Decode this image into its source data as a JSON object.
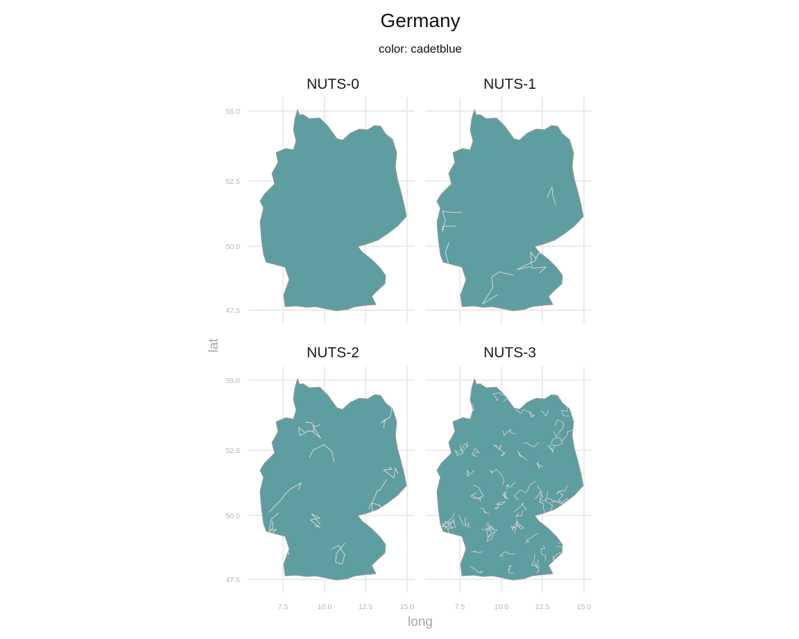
{
  "title": "Germany",
  "subtitle": "color: cadetblue",
  "fill_color": "#5f9ea0",
  "x_axis_title": "long",
  "y_axis_title": "lat",
  "x_ticks": [
    "7.5",
    "10.0",
    "12.5",
    "15.0"
  ],
  "y_ticks": [
    "55.0",
    "52.5",
    "50.0",
    "47.5"
  ],
  "panels": [
    {
      "label": "NUTS-0",
      "level": 0
    },
    {
      "label": "NUTS-1",
      "level": 1
    },
    {
      "label": "NUTS-2",
      "level": 2
    },
    {
      "label": "NUTS-3",
      "level": 3
    }
  ]
}
